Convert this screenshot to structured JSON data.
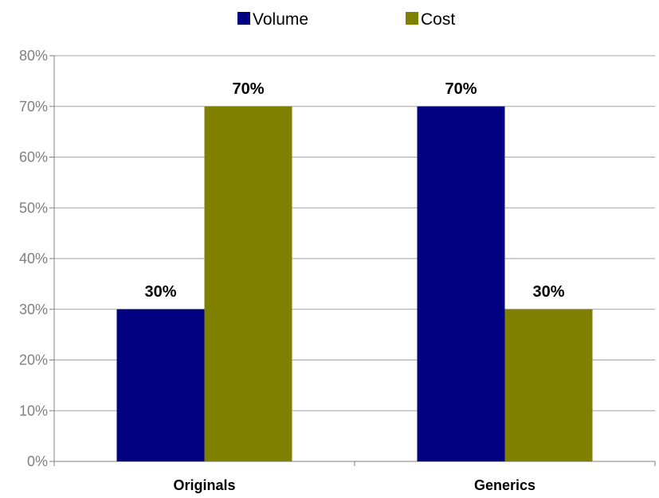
{
  "chart_data": {
    "type": "bar",
    "categories": [
      "Originals",
      "Generics"
    ],
    "series": [
      {
        "name": "Volume",
        "color": "#000080",
        "values": [
          30,
          70
        ],
        "labels": [
          "30%",
          "70%"
        ]
      },
      {
        "name": "Cost",
        "color": "#808000",
        "values": [
          70,
          30
        ],
        "labels": [
          "70%",
          "30%"
        ]
      }
    ],
    "ylim": [
      0,
      80
    ],
    "yticks": [
      0,
      10,
      20,
      30,
      40,
      50,
      60,
      70,
      80
    ],
    "ytick_labels": [
      "0%",
      "10%",
      "20%",
      "30%",
      "40%",
      "50%",
      "60%",
      "70%",
      "80%"
    ],
    "grid": true,
    "legend_position": "top-center",
    "title": "",
    "xlabel": "",
    "ylabel": ""
  }
}
